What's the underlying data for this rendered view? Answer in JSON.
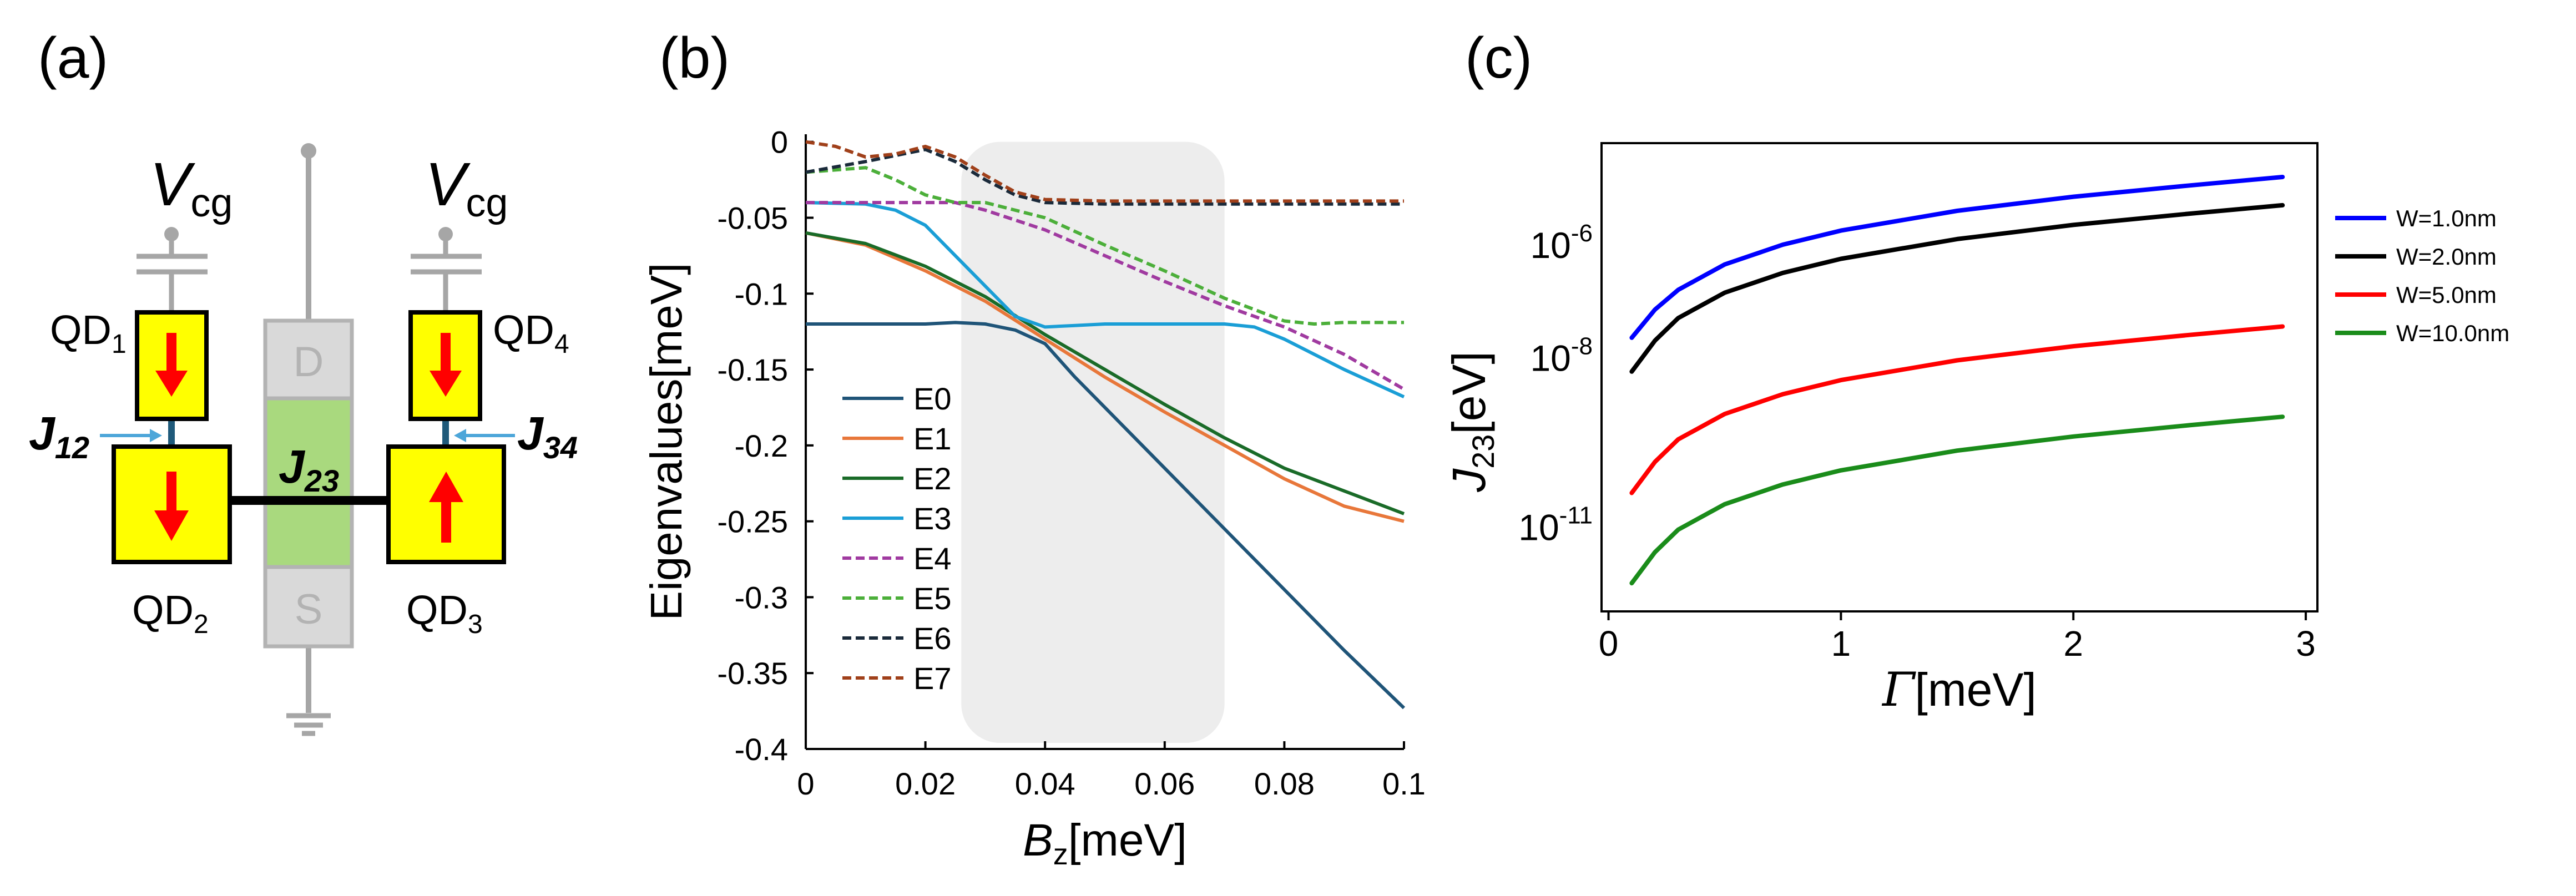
{
  "panels": {
    "a": {
      "label": "(a)",
      "gate_label": {
        "main": "V",
        "sub": "cg"
      },
      "dots": [
        {
          "main": "QD",
          "sub": "1",
          "spin": "down"
        },
        {
          "main": "QD",
          "sub": "2",
          "spin": "down"
        },
        {
          "main": "QD",
          "sub": "3",
          "spin": "up"
        },
        {
          "main": "QD",
          "sub": "4",
          "spin": "down"
        }
      ],
      "couplings": [
        {
          "main": "J",
          "sub": "12"
        },
        {
          "main": "J",
          "sub": "23"
        },
        {
          "main": "J",
          "sub": "34"
        }
      ],
      "drain_label": "D",
      "source_label": "S",
      "colors": {
        "dot_fill": "#ffff00",
        "arrow": "#ff0000",
        "channel": "#a9d97e",
        "lead": "#d9d9d9",
        "coupling_arrow": "#4da6d9",
        "wire": "#a6a6a6"
      }
    },
    "b": {
      "label": "(b)"
    },
    "c": {
      "label": "(c)"
    }
  },
  "chart_data": [
    {
      "id": "b",
      "type": "line",
      "xlabel": {
        "main": "B",
        "sub": "z",
        "unit": "[meV]"
      },
      "ylabel": "Eigenvalues[meV]",
      "xlim": [
        0,
        0.1
      ],
      "ylim": [
        -0.4,
        0.005
      ],
      "xticks": [
        0,
        0.02,
        0.04,
        0.06,
        0.08,
        0.1
      ],
      "xtick_labels": [
        "0",
        "0.02",
        "0.04",
        "0.06",
        "0.08",
        "0.1"
      ],
      "yticks": [
        0,
        -0.05,
        -0.1,
        -0.15,
        -0.2,
        -0.25,
        -0.3,
        -0.35,
        -0.4
      ],
      "ytick_labels": [
        "0",
        "-0.05",
        "-0.1",
        "-0.15",
        "-0.2",
        "-0.25",
        "-0.3",
        "-0.35",
        "-0.4"
      ],
      "shaded_region": {
        "x": [
          0.026,
          0.07
        ],
        "y": [
          -0.396,
          0.0
        ],
        "color": "#ededed"
      },
      "legend_position": "lower-left",
      "series": [
        {
          "name": "E0",
          "color": "#1f5478",
          "dash": false,
          "points": [
            [
              0,
              -0.12
            ],
            [
              0.01,
              -0.12
            ],
            [
              0.02,
              -0.12
            ],
            [
              0.025,
              -0.119
            ],
            [
              0.03,
              -0.12
            ],
            [
              0.035,
              -0.124
            ],
            [
              0.04,
              -0.133
            ],
            [
              0.045,
              -0.155
            ],
            [
              0.05,
              -0.175
            ],
            [
              0.06,
              -0.215
            ],
            [
              0.07,
              -0.255
            ],
            [
              0.08,
              -0.295
            ],
            [
              0.09,
              -0.335
            ],
            [
              0.1,
              -0.373
            ]
          ]
        },
        {
          "name": "E1",
          "color": "#e8773a",
          "dash": false,
          "points": [
            [
              0,
              -0.06
            ],
            [
              0.01,
              -0.068
            ],
            [
              0.02,
              -0.085
            ],
            [
              0.03,
              -0.105
            ],
            [
              0.04,
              -0.13
            ],
            [
              0.05,
              -0.155
            ],
            [
              0.06,
              -0.178
            ],
            [
              0.07,
              -0.2
            ],
            [
              0.08,
              -0.222
            ],
            [
              0.09,
              -0.24
            ],
            [
              0.1,
              -0.25
            ]
          ]
        },
        {
          "name": "E2",
          "color": "#1a6b28",
          "dash": false,
          "points": [
            [
              0,
              -0.06
            ],
            [
              0.01,
              -0.067
            ],
            [
              0.02,
              -0.082
            ],
            [
              0.03,
              -0.102
            ],
            [
              0.04,
              -0.127
            ],
            [
              0.05,
              -0.15
            ],
            [
              0.06,
              -0.173
            ],
            [
              0.07,
              -0.195
            ],
            [
              0.08,
              -0.215
            ],
            [
              0.09,
              -0.23
            ],
            [
              0.1,
              -0.245
            ]
          ]
        },
        {
          "name": "E3",
          "color": "#1a9ed6",
          "dash": false,
          "points": [
            [
              0,
              -0.04
            ],
            [
              0.01,
              -0.041
            ],
            [
              0.015,
              -0.045
            ],
            [
              0.02,
              -0.055
            ],
            [
              0.025,
              -0.075
            ],
            [
              0.03,
              -0.095
            ],
            [
              0.035,
              -0.115
            ],
            [
              0.04,
              -0.122
            ],
            [
              0.045,
              -0.121
            ],
            [
              0.05,
              -0.12
            ],
            [
              0.06,
              -0.12
            ],
            [
              0.07,
              -0.12
            ],
            [
              0.075,
              -0.122
            ],
            [
              0.08,
              -0.13
            ],
            [
              0.09,
              -0.15
            ],
            [
              0.1,
              -0.168
            ]
          ]
        },
        {
          "name": "E4",
          "color": "#a03aa0",
          "dash": true,
          "points": [
            [
              0,
              -0.04
            ],
            [
              0.01,
              -0.04
            ],
            [
              0.02,
              -0.04
            ],
            [
              0.025,
              -0.04
            ],
            [
              0.03,
              -0.045
            ],
            [
              0.04,
              -0.058
            ],
            [
              0.05,
              -0.075
            ],
            [
              0.06,
              -0.092
            ],
            [
              0.07,
              -0.108
            ],
            [
              0.08,
              -0.122
            ],
            [
              0.09,
              -0.14
            ],
            [
              0.1,
              -0.163
            ]
          ]
        },
        {
          "name": "E5",
          "color": "#4caf3a",
          "dash": true,
          "points": [
            [
              0,
              -0.02
            ],
            [
              0.01,
              -0.017
            ],
            [
              0.015,
              -0.025
            ],
            [
              0.02,
              -0.035
            ],
            [
              0.025,
              -0.04
            ],
            [
              0.03,
              -0.04
            ],
            [
              0.04,
              -0.05
            ],
            [
              0.05,
              -0.068
            ],
            [
              0.06,
              -0.085
            ],
            [
              0.07,
              -0.103
            ],
            [
              0.08,
              -0.118
            ],
            [
              0.085,
              -0.12
            ],
            [
              0.09,
              -0.119
            ],
            [
              0.1,
              -0.119
            ]
          ]
        },
        {
          "name": "E6",
          "color": "#1a2a3a",
          "dash": true,
          "points": [
            [
              0,
              -0.02
            ],
            [
              0.01,
              -0.013
            ],
            [
              0.02,
              -0.005
            ],
            [
              0.025,
              -0.013
            ],
            [
              0.03,
              -0.025
            ],
            [
              0.035,
              -0.035
            ],
            [
              0.04,
              -0.04
            ],
            [
              0.05,
              -0.041
            ],
            [
              0.06,
              -0.041
            ],
            [
              0.07,
              -0.041
            ],
            [
              0.08,
              -0.041
            ],
            [
              0.09,
              -0.041
            ],
            [
              0.1,
              -0.041
            ]
          ]
        },
        {
          "name": "E7",
          "color": "#a0401a",
          "dash": true,
          "points": [
            [
              0,
              0.0
            ],
            [
              0.005,
              -0.003
            ],
            [
              0.01,
              -0.01
            ],
            [
              0.015,
              -0.008
            ],
            [
              0.02,
              -0.003
            ],
            [
              0.025,
              -0.01
            ],
            [
              0.03,
              -0.022
            ],
            [
              0.035,
              -0.033
            ],
            [
              0.04,
              -0.038
            ],
            [
              0.05,
              -0.039
            ],
            [
              0.06,
              -0.039
            ],
            [
              0.07,
              -0.039
            ],
            [
              0.08,
              -0.039
            ],
            [
              0.09,
              -0.039
            ],
            [
              0.1,
              -0.039
            ]
          ]
        }
      ]
    },
    {
      "id": "c",
      "type": "line",
      "xlabel": {
        "main": "Γ",
        "unit": "[meV]"
      },
      "ylabel": {
        "main": "J",
        "sub": "23",
        "unit": "[eV]"
      },
      "xlim": [
        -0.03,
        3.05
      ],
      "ylim_log10": [
        -12.5,
        -4.2
      ],
      "xticks": [
        0,
        1,
        2,
        3
      ],
      "xtick_labels": [
        "0",
        "1",
        "2",
        "3"
      ],
      "yticks_log10": [
        -6,
        -8,
        -11
      ],
      "ytick_labels": [
        {
          "base": "10",
          "exp": "-6"
        },
        {
          "base": "10",
          "exp": "-8"
        },
        {
          "base": "10",
          "exp": "-11"
        }
      ],
      "legend_position": "outside-right",
      "series": [
        {
          "name": "W=1.0nm",
          "color": "#0000ff",
          "log10_points": [
            [
              0.1,
              -7.65
            ],
            [
              0.2,
              -7.15
            ],
            [
              0.3,
              -6.8
            ],
            [
              0.5,
              -6.35
            ],
            [
              0.75,
              -6.0
            ],
            [
              1.0,
              -5.75
            ],
            [
              1.5,
              -5.4
            ],
            [
              2.0,
              -5.15
            ],
            [
              2.5,
              -4.95
            ],
            [
              2.9,
              -4.8
            ]
          ]
        },
        {
          "name": "W=2.0nm",
          "color": "#000000",
          "log10_points": [
            [
              0.1,
              -8.25
            ],
            [
              0.2,
              -7.7
            ],
            [
              0.3,
              -7.3
            ],
            [
              0.5,
              -6.85
            ],
            [
              0.75,
              -6.5
            ],
            [
              1.0,
              -6.25
            ],
            [
              1.5,
              -5.9
            ],
            [
              2.0,
              -5.65
            ],
            [
              2.5,
              -5.45
            ],
            [
              2.9,
              -5.3
            ]
          ]
        },
        {
          "name": "W=5.0nm",
          "color": "#ff0000",
          "log10_points": [
            [
              0.1,
              -10.4
            ],
            [
              0.2,
              -9.85
            ],
            [
              0.3,
              -9.45
            ],
            [
              0.5,
              -9.0
            ],
            [
              0.75,
              -8.65
            ],
            [
              1.0,
              -8.4
            ],
            [
              1.5,
              -8.05
            ],
            [
              2.0,
              -7.8
            ],
            [
              2.5,
              -7.6
            ],
            [
              2.9,
              -7.45
            ]
          ]
        },
        {
          "name": "W=10.0nm",
          "color": "#1a8c1a",
          "log10_points": [
            [
              0.1,
              -12.0
            ],
            [
              0.2,
              -11.45
            ],
            [
              0.3,
              -11.05
            ],
            [
              0.5,
              -10.6
            ],
            [
              0.75,
              -10.25
            ],
            [
              1.0,
              -10.0
            ],
            [
              1.5,
              -9.65
            ],
            [
              2.0,
              -9.4
            ],
            [
              2.5,
              -9.2
            ],
            [
              2.9,
              -9.05
            ]
          ]
        }
      ]
    }
  ]
}
